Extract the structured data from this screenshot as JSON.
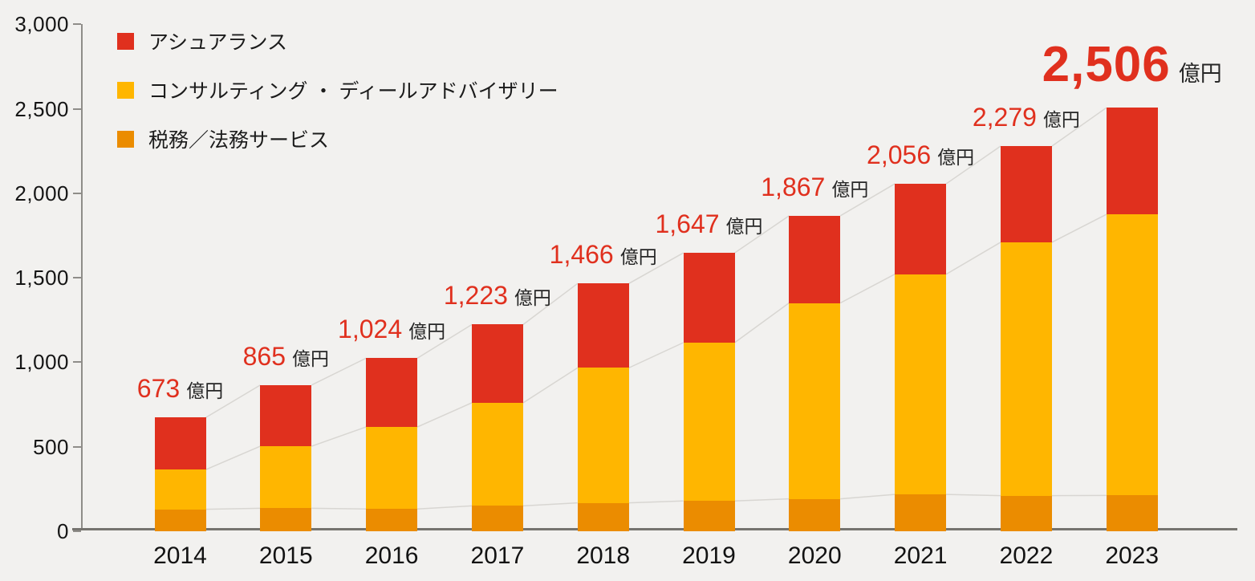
{
  "chart_data": {
    "type": "bar",
    "stacked": true,
    "title": "",
    "unit": "億円",
    "categories": [
      "2014",
      "2015",
      "2016",
      "2017",
      "2018",
      "2019",
      "2020",
      "2021",
      "2022",
      "2023"
    ],
    "series": [
      {
        "name": "アシュアランス",
        "color": "#e0301e",
        "values": [
          308,
          362,
          407,
          463,
          499,
          531,
          516,
          535,
          569,
          631
        ]
      },
      {
        "name": "コンサルティング ・ ディールアドバイザリー",
        "color": "#ffb600",
        "values": [
          235,
          367,
          485,
          610,
          799,
          937,
          1159,
          1303,
          1499,
          1663
        ]
      },
      {
        "name": "税務／法務サービス",
        "color": "#eb8c00",
        "values": [
          130,
          136,
          132,
          150,
          168,
          179,
          192,
          218,
          211,
          212
        ]
      }
    ],
    "totals": [
      673,
      865,
      1024,
      1223,
      1466,
      1647,
      1867,
      2056,
      2279,
      2506
    ],
    "total_labels": [
      "673",
      "865",
      "1,024",
      "1,223",
      "1,466",
      "1,647",
      "1,867",
      "2,056",
      "2,279",
      "2,506"
    ],
    "highlight_last": true,
    "y_axis": {
      "min": 0,
      "max": 3000,
      "tick_step": 500,
      "tick_labels": [
        "0",
        "500",
        "1,000",
        "1,500",
        "2,000",
        "2,500",
        "3,000"
      ]
    },
    "legend_position": "top-left",
    "grid": false
  },
  "colors": {
    "background": "#f2f1ef",
    "value_label_red": "#e0301e",
    "text": "#151515",
    "axis": "#8f8d89",
    "baseline": "#76746f",
    "connector": "#d8d6d2"
  }
}
